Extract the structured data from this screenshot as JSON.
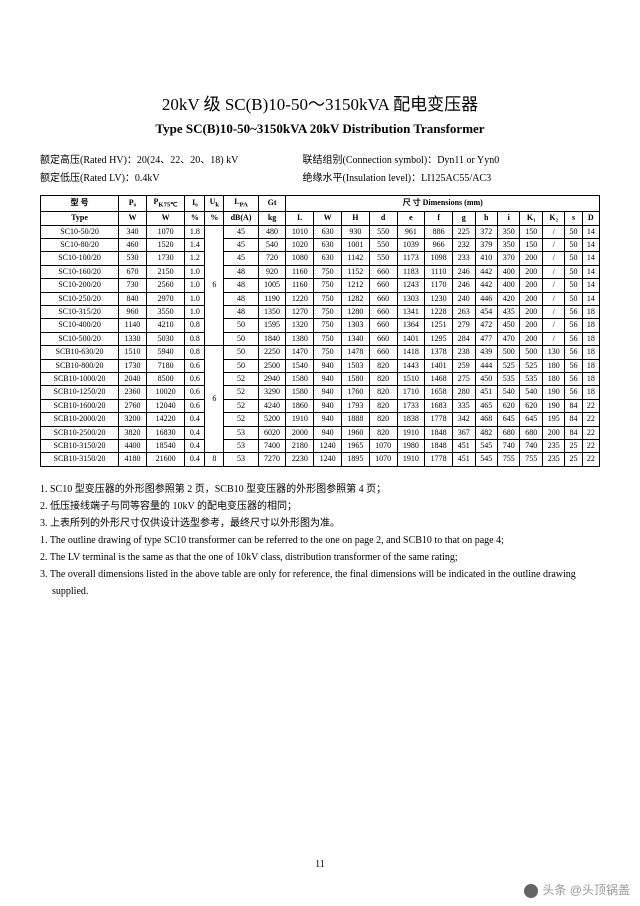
{
  "title_cn": "20kV 级 SC(B)10-50～3150kVA 配电变压器",
  "title_en": "Type SC(B)10-50~3150kVA 20kV Distribution Transformer",
  "spec": {
    "hv_label": "额定高压(Rated HV)：20(24、22、20、18) kV",
    "conn_label": "联结组别(Connection symbol)：Dyn11 or Yyn0",
    "lv_label": "额定低压(Rated LV)：0.4kV",
    "insul_label": "绝缘水平(Insulation level)：LI125AC55/AC3"
  },
  "header": {
    "r1": [
      "型 号",
      "P₀",
      "P<sub>K75℃</sub>",
      "I₀",
      "U<sub>k</sub>",
      "L<sub>PA</sub>",
      "Gt",
      "尺 寸 Dimensions (mm)"
    ],
    "r2": [
      "Type",
      "W",
      "W",
      "%",
      "%",
      "dB(A)",
      "kg",
      "L",
      "W",
      "H",
      "d",
      "e",
      "f",
      "g",
      "h",
      "i",
      "K₁",
      "K₂",
      "s",
      "D"
    ]
  },
  "group1": {
    "uk": "6",
    "rows": [
      [
        "SC10-50/20",
        "340",
        "1070",
        "1.8",
        "45",
        "480",
        "1010",
        "630",
        "930",
        "550",
        "961",
        "886",
        "225",
        "372",
        "350",
        "150",
        "/",
        "50",
        "14"
      ],
      [
        "SC10-80/20",
        "460",
        "1520",
        "1.4",
        "45",
        "540",
        "1020",
        "630",
        "1001",
        "550",
        "1039",
        "966",
        "232",
        "379",
        "350",
        "150",
        "/",
        "50",
        "14"
      ],
      [
        "SC10-100/20",
        "530",
        "1730",
        "1.2",
        "45",
        "720",
        "1080",
        "630",
        "1142",
        "550",
        "1173",
        "1098",
        "233",
        "410",
        "370",
        "200",
        "/",
        "50",
        "14"
      ],
      [
        "SC10-160/20",
        "670",
        "2150",
        "1.0",
        "48",
        "920",
        "1160",
        "750",
        "1152",
        "660",
        "1183",
        "1110",
        "246",
        "442",
        "400",
        "200",
        "/",
        "50",
        "14"
      ],
      [
        "SC10-200/20",
        "730",
        "2560",
        "1.0",
        "48",
        "1005",
        "1160",
        "750",
        "1212",
        "660",
        "1243",
        "1170",
        "246",
        "442",
        "400",
        "200",
        "/",
        "50",
        "14"
      ],
      [
        "SC10-250/20",
        "840",
        "2970",
        "1.0",
        "48",
        "1190",
        "1220",
        "750",
        "1282",
        "660",
        "1303",
        "1230",
        "240",
        "446",
        "420",
        "200",
        "/",
        "50",
        "14"
      ],
      [
        "SC10-315/20",
        "960",
        "3550",
        "1.0",
        "48",
        "1350",
        "1270",
        "750",
        "1280",
        "660",
        "1341",
        "1228",
        "263",
        "454",
        "435",
        "200",
        "/",
        "56",
        "18"
      ],
      [
        "SC10-400/20",
        "1140",
        "4210",
        "0.8",
        "50",
        "1595",
        "1320",
        "750",
        "1303",
        "660",
        "1364",
        "1251",
        "279",
        "472",
        "450",
        "200",
        "/",
        "56",
        "18"
      ],
      [
        "SC10-500/20",
        "1330",
        "5030",
        "0.8",
        "50",
        "1840",
        "1380",
        "750",
        "1340",
        "660",
        "1401",
        "1295",
        "284",
        "477",
        "470",
        "200",
        "/",
        "56",
        "18"
      ]
    ]
  },
  "group2": {
    "uk": "6",
    "rows": [
      [
        "SCB10-630/20",
        "1510",
        "5940",
        "0.8",
        "50",
        "2250",
        "1470",
        "750",
        "1478",
        "660",
        "1418",
        "1378",
        "238",
        "439",
        "500",
        "500",
        "130",
        "56",
        "18"
      ],
      [
        "SCB10-800/20",
        "1730",
        "7180",
        "0.6",
        "50",
        "2500",
        "1540",
        "940",
        "1503",
        "820",
        "1443",
        "1401",
        "259",
        "444",
        "525",
        "525",
        "180",
        "56",
        "18"
      ],
      [
        "SCB10-1000/20",
        "2040",
        "8500",
        "0.6",
        "52",
        "2940",
        "1580",
        "940",
        "1580",
        "820",
        "1510",
        "1468",
        "275",
        "450",
        "535",
        "535",
        "180",
        "56",
        "18"
      ],
      [
        "SCB10-1250/20",
        "2360",
        "10020",
        "0.6",
        "52",
        "3290",
        "1580",
        "940",
        "1760",
        "820",
        "1710",
        "1658",
        "280",
        "451",
        "540",
        "540",
        "190",
        "56",
        "18"
      ],
      [
        "SCB10-1600/20",
        "2760",
        "12040",
        "0.6",
        "52",
        "4240",
        "1860",
        "940",
        "1793",
        "820",
        "1733",
        "1683",
        "335",
        "465",
        "620",
        "620",
        "190",
        "84",
        "22"
      ],
      [
        "SCB10-2000/20",
        "3200",
        "14220",
        "0.4",
        "52",
        "5200",
        "1910",
        "940",
        "1888",
        "820",
        "1838",
        "1778",
        "342",
        "468",
        "645",
        "645",
        "195",
        "84",
        "22"
      ],
      [
        "SCB10-2500/20",
        "3820",
        "16830",
        "0.4",
        "53",
        "6020",
        "2000",
        "940",
        "1960",
        "820",
        "1910",
        "1848",
        "367",
        "482",
        "680",
        "680",
        "200",
        "84",
        "22"
      ],
      [
        "SCB10-3150/20",
        "4400",
        "18540",
        "0.4",
        "53",
        "7400",
        "2180",
        "1240",
        "1965",
        "1070",
        "1980",
        "1848",
        "451",
        "545",
        "740",
        "740",
        "235",
        "25",
        "22"
      ]
    ]
  },
  "row_uk8": [
    "SCB10-3150/20",
    "4180",
    "21600",
    "0.4",
    "8",
    "53",
    "7270",
    "2230",
    "1240",
    "1895",
    "1070",
    "1910",
    "1778",
    "451",
    "545",
    "755",
    "755",
    "235",
    "25",
    "22"
  ],
  "notes": {
    "cn1": "1. SC10 型变压器的外形图参照第 2 页，SCB10 型变压器的外形图参照第 4 页；",
    "cn2": "2. 低压接线端子与同等容量的 10kV 的配电变压器的相同；",
    "cn3": "3. 上表所列的外形尺寸仅供设计选型参考，最终尺寸以外形图为准。",
    "en1": "1. The outline drawing of type SC10 transformer can be referred to the one on page 2, and SCB10 to that on page 4;",
    "en2": "2. The LV terminal is the same as that the one of 10kV class, distribution transformer of the same rating;",
    "en3": "3. The overall dimensions listed in the above table are only for reference, the final dimensions will be indicated in the outline drawing supplied."
  },
  "page_number": "11",
  "watermark": "头条 @头顶锅盖"
}
